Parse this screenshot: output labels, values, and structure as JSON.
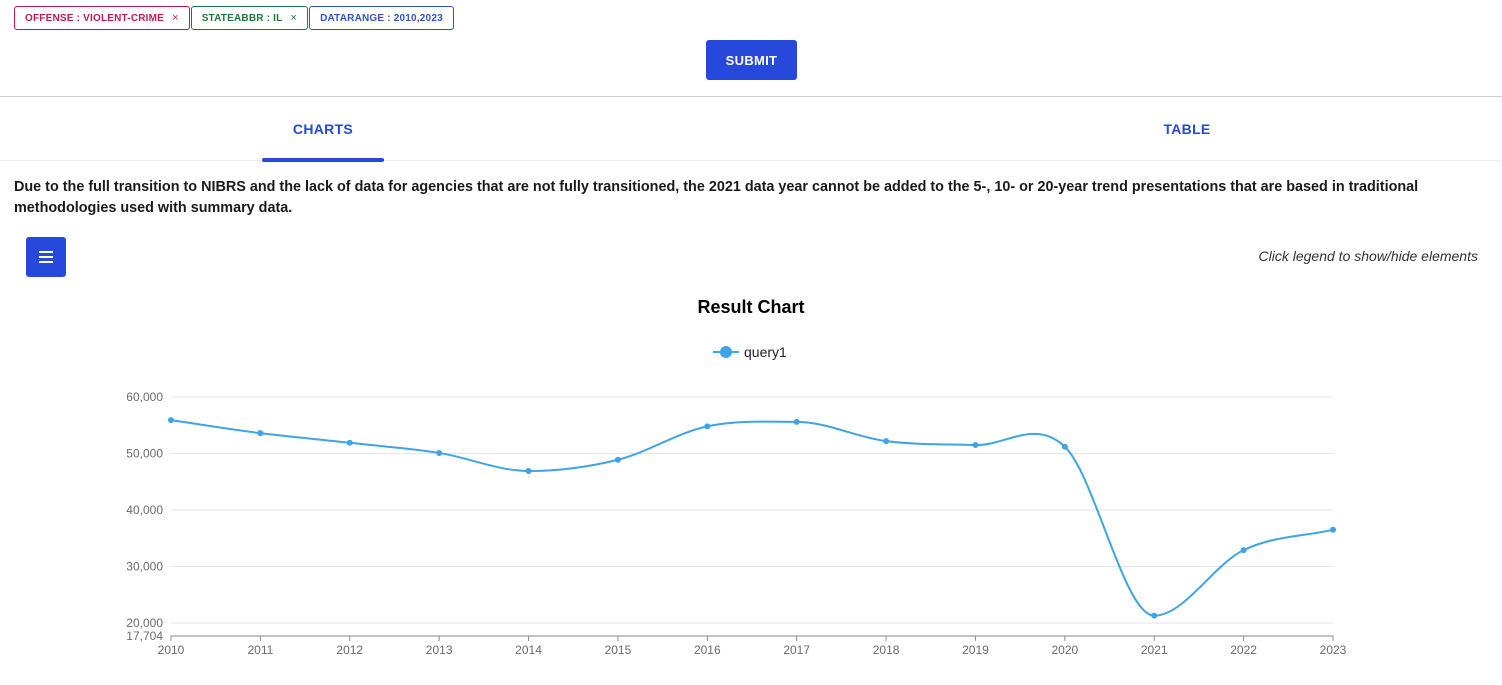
{
  "filters": {
    "offense": "OFFENSE : VIOLENT-CRIME",
    "state": "STATEABBR : IL",
    "range": "DATARANGE : 2010,2023",
    "remove_symbol": "×"
  },
  "submit_label": "SUBMIT",
  "tabs": [
    {
      "label": "CHARTS",
      "active": true
    },
    {
      "label": "TABLE",
      "active": false
    }
  ],
  "notice": "Due to the full transition to NIBRS and the lack of data for agencies that are not fully transitioned, the 2021 data year cannot be added to the 5-, 10- or 20-year trend presentations that are based in traditional methodologies used with summary data.",
  "hint": "Click legend to show/hide elements",
  "colors": {
    "accent": "#2648db",
    "series": "#3fa3e4"
  },
  "chart_data": {
    "type": "line",
    "title": "Result Chart",
    "legend_position": "top-center",
    "grid": true,
    "x": [
      "2010",
      "2011",
      "2012",
      "2013",
      "2014",
      "2015",
      "2016",
      "2017",
      "2018",
      "2019",
      "2020",
      "2021",
      "2022",
      "2023"
    ],
    "series": [
      {
        "name": "query1",
        "values": [
          55900,
          53600,
          51900,
          50100,
          46900,
          48900,
          54800,
          55600,
          52200,
          51500,
          51200,
          21300,
          32900,
          36500
        ]
      }
    ],
    "ylim": [
      17704,
      60000
    ],
    "yticks": [
      "60,000",
      "50,000",
      "40,000",
      "30,000",
      "20,000",
      "17,704"
    ],
    "ytick_values": [
      60000,
      50000,
      40000,
      30000,
      20000,
      17704
    ]
  }
}
